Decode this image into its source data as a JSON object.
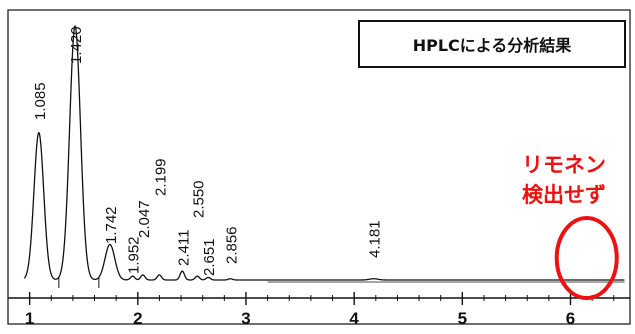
{
  "chart_data": {
    "type": "line",
    "title": "HPLCによる分析結果",
    "xlabel": "",
    "ylabel": "",
    "xlim": [
      0.8,
      6.55
    ],
    "ylim": [
      0,
      100
    ],
    "x_ticks": [
      1,
      2,
      3,
      4,
      5,
      6
    ],
    "x_tick_labels": [
      "1",
      "2",
      "3",
      "4",
      "5",
      "6"
    ],
    "grid": false,
    "series": [
      {
        "peaks": [
          {
            "rt": 1.085,
            "label": "1.085",
            "height": 58
          },
          {
            "rt": 1.42,
            "label": "1.420",
            "height": 100
          },
          {
            "rt": 1.742,
            "label": "1.742",
            "height": 14
          },
          {
            "rt": 1.952,
            "label": "1.952",
            "height": 1.5
          },
          {
            "rt": 2.047,
            "label": "2.047",
            "height": 2
          },
          {
            "rt": 2.199,
            "label": "2.199",
            "height": 2
          },
          {
            "rt": 2.411,
            "label": "2.411",
            "height": 3.5
          },
          {
            "rt": 2.55,
            "label": "2.550",
            "height": 1.5
          },
          {
            "rt": 2.651,
            "label": "2.651",
            "height": 1
          },
          {
            "rt": 2.856,
            "label": "2.856",
            "height": 0.5
          },
          {
            "rt": 4.181,
            "label": "4.181",
            "height": 0.5
          }
        ]
      }
    ],
    "annotation": {
      "line1": "リモネン",
      "line2": "検出せず",
      "color": "#ee1111",
      "marker": "circle",
      "x_center": 6.15
    }
  }
}
